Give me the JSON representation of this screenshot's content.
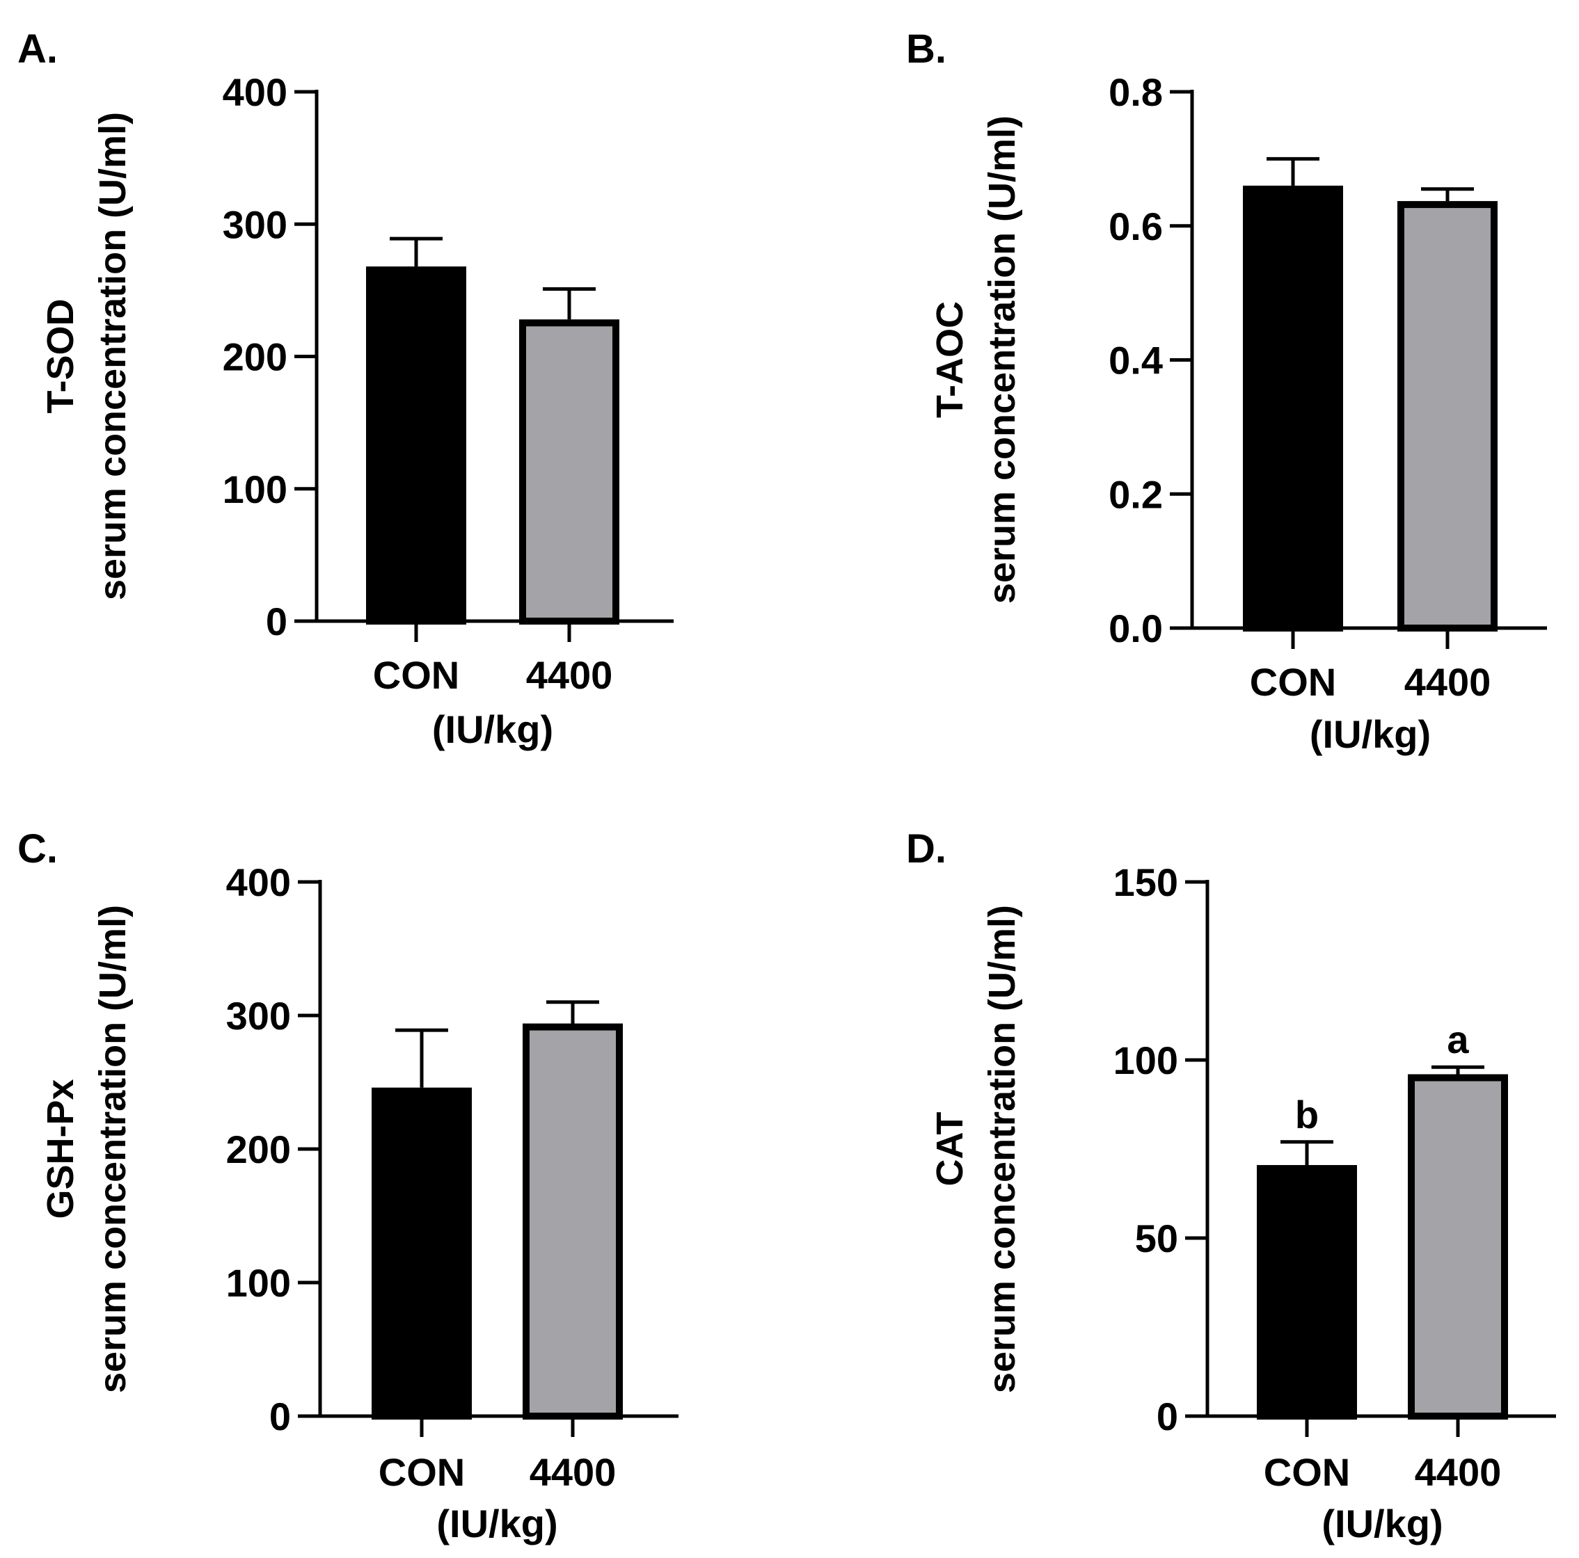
{
  "figure": {
    "panels": [
      {
        "letter": "A."
      },
      {
        "letter": "B."
      },
      {
        "letter": "C."
      },
      {
        "letter": "D."
      }
    ]
  },
  "colors": {
    "con_bar": "#000000",
    "treat_bar": "#a4a3a8",
    "axis": "#000000"
  },
  "chart_data": [
    {
      "type": "bar",
      "panel": "A.",
      "categories": [
        "CON",
        "4400"
      ],
      "xlabel": "(IU/kg)",
      "ylabel_line1": "T-SOD",
      "ylabel_line2": "serum concentration (U/ml)",
      "values": [
        268,
        228
      ],
      "errors": [
        21,
        23
      ],
      "significance": [
        "",
        ""
      ],
      "ylim": [
        0,
        400
      ],
      "yticks": [
        0,
        100,
        200,
        300,
        400
      ],
      "ytick_labels": [
        "0",
        "100",
        "200",
        "300",
        "400"
      ]
    },
    {
      "type": "bar",
      "panel": "B.",
      "categories": [
        "CON",
        "4400"
      ],
      "xlabel": "(IU/kg)",
      "ylabel_line1": "T-AOC",
      "ylabel_line2": "serum concentration (U/ml)",
      "values": [
        0.66,
        0.637
      ],
      "errors": [
        0.04,
        0.018
      ],
      "significance": [
        "",
        ""
      ],
      "ylim": [
        0,
        0.8
      ],
      "yticks": [
        0,
        0.2,
        0.4,
        0.6,
        0.8
      ],
      "ytick_labels": [
        "0.0",
        "0.2",
        "0.4",
        "0.6",
        "0.8"
      ]
    },
    {
      "type": "bar",
      "panel": "C.",
      "categories": [
        "CON",
        "4400"
      ],
      "xlabel": "(IU/kg)",
      "ylabel_line1": "GSH-Px",
      "ylabel_line2": "serum concentration (U/ml)",
      "values": [
        246,
        294
      ],
      "errors": [
        43,
        16
      ],
      "significance": [
        "",
        ""
      ],
      "ylim": [
        0,
        400
      ],
      "yticks": [
        0,
        100,
        200,
        300,
        400
      ],
      "ytick_labels": [
        "0",
        "100",
        "200",
        "300",
        "400"
      ]
    },
    {
      "type": "bar",
      "panel": "D.",
      "categories": [
        "CON",
        "4400"
      ],
      "xlabel": "(IU/kg)",
      "ylabel_line1": "CAT",
      "ylabel_line2": "serum concentration (U/ml)",
      "values": [
        70.5,
        96
      ],
      "errors": [
        6.5,
        2
      ],
      "significance": [
        "b",
        "a"
      ],
      "ylim": [
        0,
        150
      ],
      "yticks": [
        0,
        50,
        100,
        150
      ],
      "ytick_labels": [
        "0",
        "50",
        "100",
        "150"
      ]
    }
  ]
}
